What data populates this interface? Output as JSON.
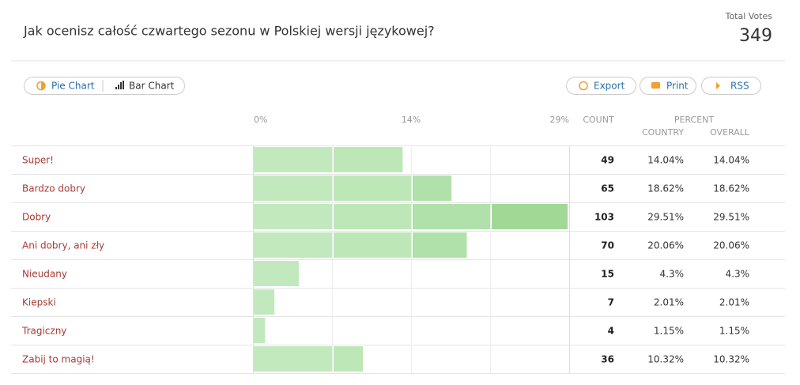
{
  "question": "Jak ocenisz całość czwartego sezonu w Polskiej wersji językowej?",
  "total_votes": {
    "label": "Total Votes",
    "value": 349
  },
  "view_tabs": [
    "Pie Chart",
    "Bar Chart"
  ],
  "actions": [
    "Export",
    "Print",
    "RSS"
  ],
  "table": {
    "axis_labels": [
      "0%",
      "14%",
      "29%"
    ],
    "columns": {
      "count": "COUNT",
      "percent": "PERCENT",
      "country": "COUNTRY",
      "overall": "OVERALL"
    },
    "rows": [
      {
        "label": "Super!",
        "count": 49,
        "country": "14.04%",
        "overall": "14.04%"
      },
      {
        "label": "Bardzo dobry",
        "count": 65,
        "country": "18.62%",
        "overall": "18.62%"
      },
      {
        "label": "Dobry",
        "count": 103,
        "country": "29.51%",
        "overall": "29.51%"
      },
      {
        "label": "Ani dobry, ani zły",
        "count": 70,
        "country": "20.06%",
        "overall": "20.06%"
      },
      {
        "label": "Nieudany",
        "count": 15,
        "country": "4.3%",
        "overall": "4.3%"
      },
      {
        "label": "Kiepski",
        "count": 7,
        "country": "2.01%",
        "overall": "2.01%"
      },
      {
        "label": "Tragiczny",
        "count": 4,
        "country": "1.15%",
        "overall": "1.15%"
      },
      {
        "label": "Zabij to magią!",
        "count": 36,
        "country": "10.32%",
        "overall": "10.32%"
      }
    ]
  }
}
